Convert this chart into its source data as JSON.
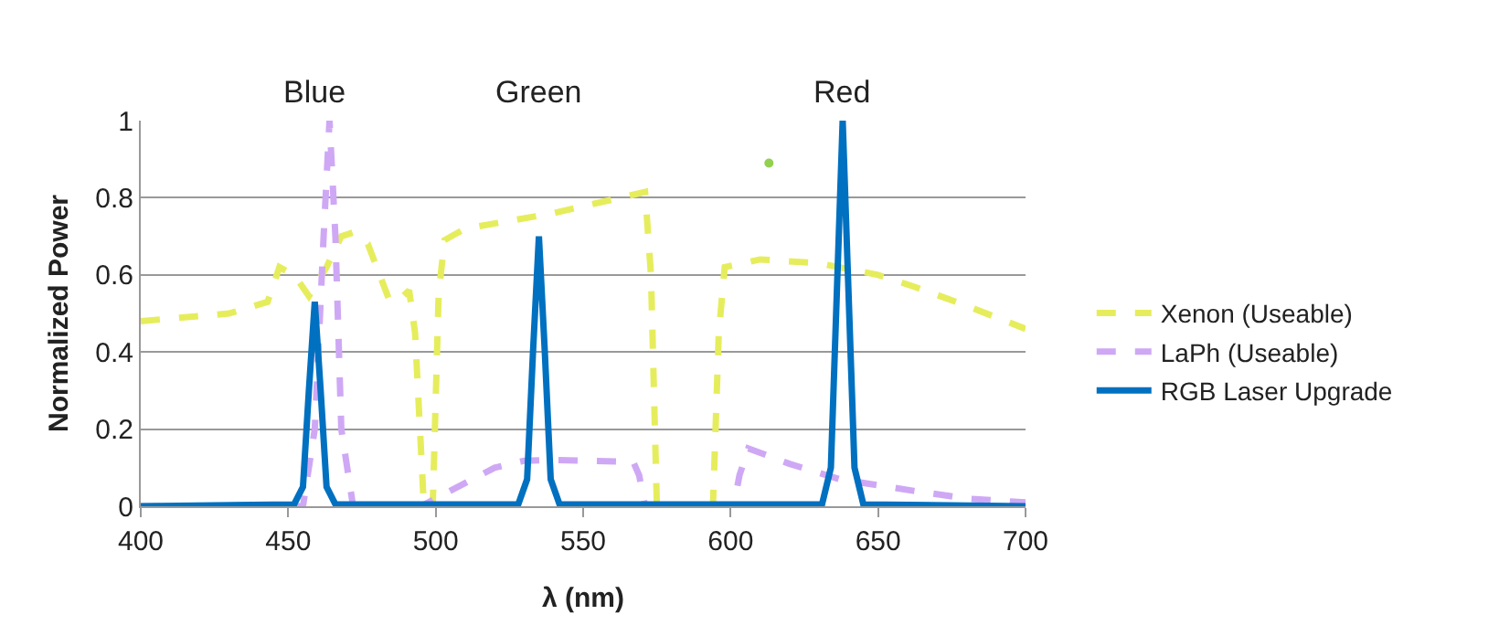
{
  "chart_data": {
    "type": "line",
    "xlabel": "λ (nm)",
    "ylabel": "Normalized Power",
    "xlim": [
      400,
      700
    ],
    "xticks": [
      400,
      450,
      500,
      550,
      600,
      650,
      700
    ],
    "ylim": [
      0,
      1
    ],
    "yticks": [
      0,
      0.2,
      0.4,
      0.6,
      0.8,
      1
    ],
    "grid": "y",
    "legend": "right",
    "marker": "none",
    "annotations": [
      "Blue",
      "Green",
      "Red"
    ],
    "series": [
      {
        "name": "Xenon (Useable)",
        "color": "#e6ed5c",
        "line_style": "dashed",
        "x": [
          400,
          430,
          443,
          447,
          452,
          457,
          463,
          468,
          472,
          477,
          484,
          487,
          491,
          493,
          496,
          499,
          501,
          503,
          510,
          540,
          571,
          573,
          575,
          594,
          596,
          598,
          610,
          630,
          650,
          662,
          680,
          700
        ],
        "values": [
          0.48,
          0.5,
          0.53,
          0.62,
          0.6,
          0.545,
          0.62,
          0.7,
          0.71,
          0.68,
          0.54,
          0.53,
          0.56,
          0.45,
          0,
          0,
          0.55,
          0.69,
          0.72,
          0.76,
          0.815,
          0.6,
          0,
          0,
          0.45,
          0.62,
          0.64,
          0.63,
          0.6,
          0.57,
          0.52,
          0.46
        ]
      },
      {
        "name": "LaPh (Useable)",
        "color": "#cfa8f5",
        "line_style": "dashed",
        "x": [
          400,
          455,
          459,
          462,
          464,
          466,
          468,
          472,
          495,
          500,
          510,
          520,
          530,
          540,
          567,
          569,
          571,
          601,
          603,
          606,
          620,
          637,
          662,
          680,
          700
        ],
        "values": [
          0,
          0,
          0.2,
          0.7,
          1,
          0.7,
          0.2,
          0,
          0,
          0.02,
          0.06,
          0.1,
          0.118,
          0.12,
          0.115,
          0.08,
          0,
          0,
          0.08,
          0.15,
          0.11,
          0.07,
          0.04,
          0.02,
          0.01
        ]
      },
      {
        "name": "RGB Laser Upgrade",
        "color": "#0070c0",
        "line_style": "solid",
        "x": [
          400,
          452,
          455,
          457,
          459,
          461,
          463,
          466,
          528,
          531,
          533,
          535,
          537,
          539,
          542,
          631,
          634,
          636,
          638,
          640,
          642,
          645,
          700
        ],
        "values": [
          0,
          0.005,
          0.05,
          0.3,
          0.53,
          0.3,
          0.05,
          0.005,
          0.005,
          0.07,
          0.4,
          0.7,
          0.4,
          0.07,
          0.005,
          0.005,
          0.1,
          0.55,
          1,
          0.55,
          0.1,
          0.005,
          0
        ]
      },
      {
        "type": "scatter",
        "color": "#92d050",
        "marker": "circle",
        "x": [
          613
        ],
        "values": [
          0.89
        ]
      }
    ]
  }
}
